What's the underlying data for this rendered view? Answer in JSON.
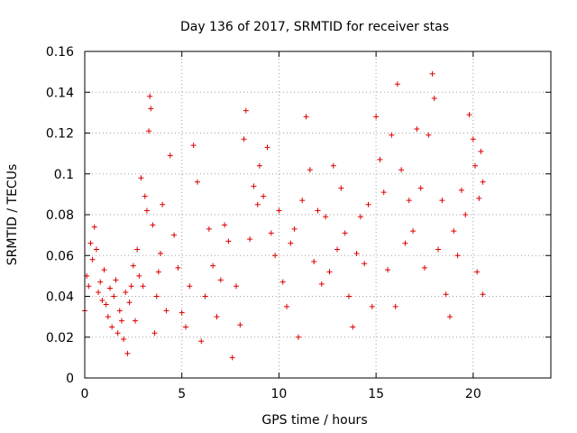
{
  "chart_data": {
    "type": "scatter",
    "title": "Day 136 of 2017, SRMTID for receiver stas",
    "xlabel": "GPS time / hours",
    "ylabel": "SRMTID / TECUs",
    "xlim": [
      0,
      24
    ],
    "ylim": [
      0,
      0.16
    ],
    "x_ticks": [
      0,
      5,
      10,
      15,
      20
    ],
    "x_tick_labels": [
      "0",
      "5",
      "10",
      "15",
      "20"
    ],
    "y_ticks": [
      0,
      0.02,
      0.04,
      0.06,
      0.08,
      0.1,
      0.12,
      0.14,
      0.16
    ],
    "y_tick_labels": [
      "0",
      "0.02",
      "0.04",
      "0.06",
      "0.08",
      "0.1",
      "0.12",
      "0.14",
      "0.16"
    ],
    "grid": true,
    "marker": "plus",
    "series": [
      {
        "color": "#dd0000",
        "points": [
          [
            0.0,
            0.033
          ],
          [
            0.1,
            0.05
          ],
          [
            0.2,
            0.045
          ],
          [
            0.3,
            0.066
          ],
          [
            0.4,
            0.058
          ],
          [
            0.5,
            0.074
          ],
          [
            0.6,
            0.063
          ],
          [
            0.7,
            0.042
          ],
          [
            0.8,
            0.047
          ],
          [
            0.9,
            0.038
          ],
          [
            1.0,
            0.053
          ],
          [
            1.1,
            0.036
          ],
          [
            1.2,
            0.03
          ],
          [
            1.3,
            0.044
          ],
          [
            1.4,
            0.025
          ],
          [
            1.5,
            0.04
          ],
          [
            1.6,
            0.048
          ],
          [
            1.7,
            0.022
          ],
          [
            1.8,
            0.033
          ],
          [
            1.9,
            0.028
          ],
          [
            2.0,
            0.019
          ],
          [
            2.1,
            0.042
          ],
          [
            2.2,
            0.012
          ],
          [
            2.3,
            0.037
          ],
          [
            2.4,
            0.045
          ],
          [
            2.5,
            0.055
          ],
          [
            2.6,
            0.028
          ],
          [
            2.7,
            0.063
          ],
          [
            2.8,
            0.05
          ],
          [
            2.9,
            0.098
          ],
          [
            3.0,
            0.045
          ],
          [
            3.1,
            0.089
          ],
          [
            3.2,
            0.082
          ],
          [
            3.3,
            0.121
          ],
          [
            3.35,
            0.138
          ],
          [
            3.4,
            0.132
          ],
          [
            3.5,
            0.075
          ],
          [
            3.6,
            0.022
          ],
          [
            3.7,
            0.04
          ],
          [
            3.8,
            0.052
          ],
          [
            3.9,
            0.061
          ],
          [
            4.0,
            0.085
          ],
          [
            4.2,
            0.033
          ],
          [
            4.4,
            0.109
          ],
          [
            4.6,
            0.07
          ],
          [
            4.8,
            0.054
          ],
          [
            5.0,
            0.032
          ],
          [
            5.2,
            0.025
          ],
          [
            5.4,
            0.045
          ],
          [
            5.6,
            0.114
          ],
          [
            5.8,
            0.096
          ],
          [
            6.0,
            0.018
          ],
          [
            6.2,
            0.04
          ],
          [
            6.4,
            0.073
          ],
          [
            6.6,
            0.055
          ],
          [
            6.8,
            0.03
          ],
          [
            7.0,
            0.048
          ],
          [
            7.2,
            0.075
          ],
          [
            7.4,
            0.067
          ],
          [
            7.6,
            0.01
          ],
          [
            7.8,
            0.045
          ],
          [
            8.0,
            0.026
          ],
          [
            8.2,
            0.117
          ],
          [
            8.3,
            0.131
          ],
          [
            8.5,
            0.068
          ],
          [
            8.7,
            0.094
          ],
          [
            8.9,
            0.085
          ],
          [
            9.0,
            0.104
          ],
          [
            9.2,
            0.089
          ],
          [
            9.4,
            0.113
          ],
          [
            9.6,
            0.071
          ],
          [
            9.8,
            0.06
          ],
          [
            10.0,
            0.082
          ],
          [
            10.2,
            0.047
          ],
          [
            10.4,
            0.035
          ],
          [
            10.6,
            0.066
          ],
          [
            10.8,
            0.073
          ],
          [
            11.0,
            0.02
          ],
          [
            11.2,
            0.087
          ],
          [
            11.4,
            0.128
          ],
          [
            11.6,
            0.102
          ],
          [
            11.8,
            0.057
          ],
          [
            12.0,
            0.082
          ],
          [
            12.2,
            0.046
          ],
          [
            12.4,
            0.079
          ],
          [
            12.6,
            0.052
          ],
          [
            12.8,
            0.104
          ],
          [
            13.0,
            0.063
          ],
          [
            13.2,
            0.093
          ],
          [
            13.4,
            0.071
          ],
          [
            13.6,
            0.04
          ],
          [
            13.8,
            0.025
          ],
          [
            14.0,
            0.061
          ],
          [
            14.2,
            0.079
          ],
          [
            14.4,
            0.056
          ],
          [
            14.6,
            0.085
          ],
          [
            14.8,
            0.035
          ],
          [
            15.0,
            0.128
          ],
          [
            15.2,
            0.107
          ],
          [
            15.4,
            0.091
          ],
          [
            15.6,
            0.053
          ],
          [
            15.8,
            0.119
          ],
          [
            16.0,
            0.035
          ],
          [
            16.1,
            0.144
          ],
          [
            16.3,
            0.102
          ],
          [
            16.5,
            0.066
          ],
          [
            16.7,
            0.087
          ],
          [
            16.9,
            0.072
          ],
          [
            17.1,
            0.122
          ],
          [
            17.3,
            0.093
          ],
          [
            17.5,
            0.054
          ],
          [
            17.7,
            0.119
          ],
          [
            17.9,
            0.149
          ],
          [
            18.0,
            0.137
          ],
          [
            18.2,
            0.063
          ],
          [
            18.4,
            0.087
          ],
          [
            18.6,
            0.041
          ],
          [
            18.8,
            0.03
          ],
          [
            19.0,
            0.072
          ],
          [
            19.2,
            0.06
          ],
          [
            19.4,
            0.092
          ],
          [
            19.6,
            0.08
          ],
          [
            19.8,
            0.129
          ],
          [
            20.0,
            0.117
          ],
          [
            20.1,
            0.104
          ],
          [
            20.2,
            0.052
          ],
          [
            20.3,
            0.088
          ],
          [
            20.4,
            0.111
          ],
          [
            20.5,
            0.041
          ],
          [
            20.5,
            0.096
          ]
        ]
      }
    ]
  }
}
